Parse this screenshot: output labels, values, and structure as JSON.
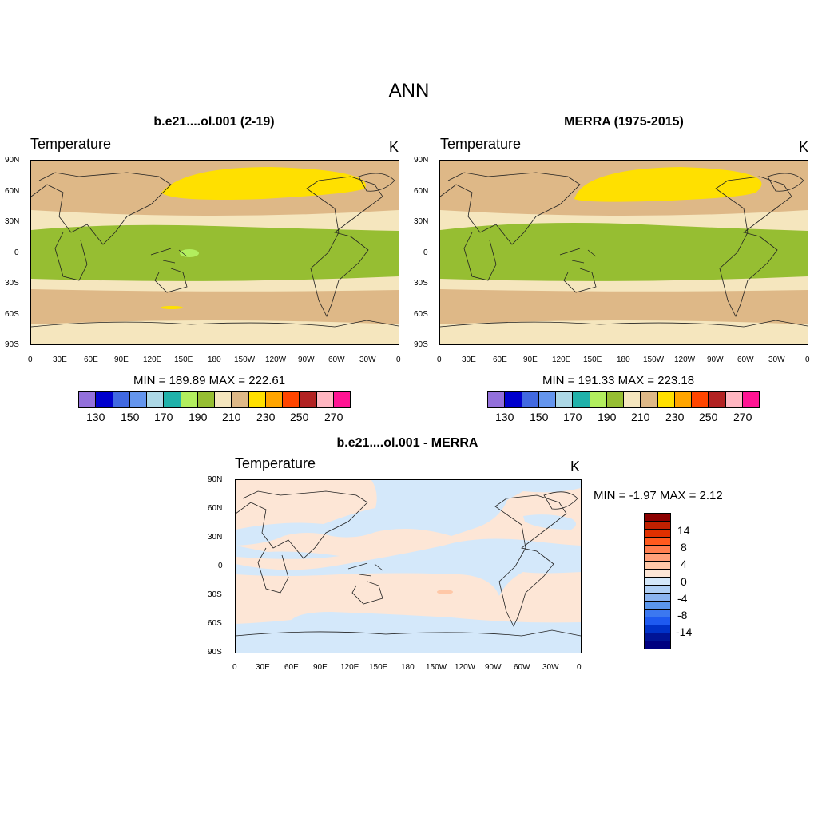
{
  "title": "ANN",
  "panels": [
    {
      "title": "b.e21....ol.001 (2-19)",
      "left_string": "Temperature",
      "right_string": "K",
      "minmax": "MIN = 189.89  MAX = 222.61"
    },
    {
      "title": "MERRA (1975-2015)",
      "left_string": "Temperature",
      "right_string": "K",
      "minmax": "MIN = 191.33  MAX = 223.18"
    },
    {
      "title": "b.e21....ol.001 - MERRA",
      "left_string": "Temperature",
      "right_string": "K",
      "minmax": "MIN =  -1.97  MAX =   2.12"
    }
  ],
  "lat_labels": [
    "90N",
    "60N",
    "30N",
    "0",
    "30S",
    "60S",
    "90S"
  ],
  "lon_labels": [
    "0",
    "30E",
    "60E",
    "90E",
    "120E",
    "150E",
    "180",
    "150W",
    "120W",
    "90W",
    "60W",
    "30W",
    "0"
  ],
  "colorbar_abs": {
    "colors": [
      "#9370DB",
      "#0000CD",
      "#4169E1",
      "#6495ED",
      "#ADD8E6",
      "#20B2AA",
      "#B2EE5E",
      "#96BE32",
      "#F5E6BE",
      "#DEB887",
      "#FFE000",
      "#FFA500",
      "#FF4500",
      "#B22222",
      "#FFB6C1",
      "#FF1493"
    ],
    "labels": [
      "130",
      "150",
      "170",
      "190",
      "210",
      "230",
      "250",
      "270"
    ]
  },
  "colorbar_diff": {
    "colors": [
      "#8B0000",
      "#C02000",
      "#E03000",
      "#FF5A1E",
      "#FF7F50",
      "#FFA07A",
      "#FFC8A8",
      "#FDE6D6",
      "#D4E8FA",
      "#B0D0F5",
      "#8AB4F0",
      "#5A96EC",
      "#3C78F0",
      "#1E5AF0",
      "#0032C8",
      "#001496",
      "#000080"
    ],
    "labels": [
      "14",
      "8",
      "4",
      "0",
      "-4",
      "-8",
      "-14"
    ]
  },
  "chart_data": [
    {
      "type": "heatmap",
      "title": "b.e21....ol.001 (2-19)",
      "variable": "Temperature",
      "units": "K",
      "min": 189.89,
      "max": 222.61,
      "levels": [
        130,
        140,
        150,
        160,
        170,
        180,
        190,
        200,
        210,
        220,
        230,
        240,
        250,
        260,
        270
      ]
    },
    {
      "type": "heatmap",
      "title": "MERRA (1975-2015)",
      "variable": "Temperature",
      "units": "K",
      "min": 191.33,
      "max": 223.18,
      "levels": [
        130,
        140,
        150,
        160,
        170,
        180,
        190,
        200,
        210,
        220,
        230,
        240,
        250,
        260,
        270
      ]
    },
    {
      "type": "heatmap",
      "title": "b.e21....ol.001 - MERRA",
      "variable": "Temperature",
      "units": "K",
      "min": -1.97,
      "max": 2.12,
      "levels": [
        -14,
        -8,
        -4,
        0,
        4,
        8,
        14
      ]
    }
  ]
}
